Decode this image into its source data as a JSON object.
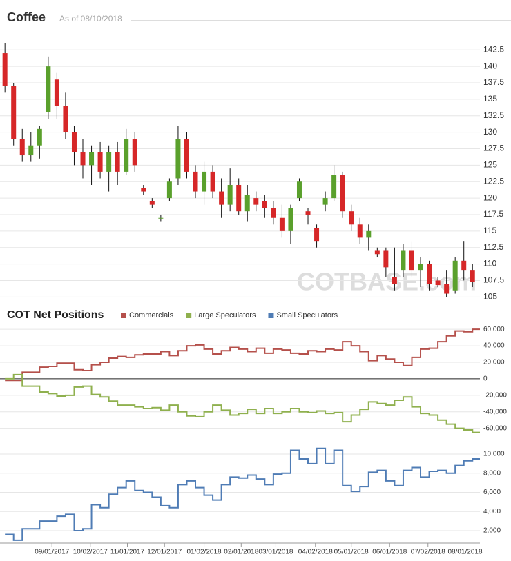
{
  "chart_data": [
    {
      "type": "candlestick",
      "title": "Coffee",
      "subtitle": "As of 08/10/2018",
      "watermark": "COTBASE.com",
      "up_color": "#5aa02c",
      "down_color": "#d62728",
      "xlim": [
        "07/21/2017",
        "08/13/2018"
      ],
      "ylim": [
        104.3,
        144.1
      ],
      "yticks": [
        105,
        107.5,
        110,
        112.5,
        115,
        117.5,
        120,
        122.5,
        125,
        127.5,
        130,
        132.5,
        135,
        137.5,
        140,
        142.5
      ],
      "grid": true,
      "x": [
        "07/25/2017",
        "08/01/2017",
        "08/08/2017",
        "08/15/2017",
        "08/22/2017",
        "08/29/2017",
        "09/05/2017",
        "09/12/2017",
        "09/19/2017",
        "09/26/2017",
        "10/03/2017",
        "10/10/2017",
        "10/17/2017",
        "10/24/2017",
        "10/31/2017",
        "11/07/2017",
        "11/14/2017",
        "11/21/2017",
        "11/28/2017",
        "12/05/2017",
        "12/12/2017",
        "12/19/2017",
        "12/26/2017",
        "01/02/2018",
        "01/09/2018",
        "01/16/2018",
        "01/23/2018",
        "01/30/2018",
        "02/06/2018",
        "02/13/2018",
        "02/20/2018",
        "02/27/2018",
        "03/06/2018",
        "03/13/2018",
        "03/20/2018",
        "03/27/2018",
        "04/03/2018",
        "04/10/2018",
        "04/17/2018",
        "04/24/2018",
        "05/01/2018",
        "05/08/2018",
        "05/15/2018",
        "05/22/2018",
        "05/29/2018",
        "06/05/2018",
        "06/12/2018",
        "06/19/2018",
        "06/26/2018",
        "07/03/2018",
        "07/10/2018",
        "07/17/2018",
        "07/24/2018",
        "07/31/2018",
        "08/07/2018"
      ],
      "open": [
        142,
        137,
        129,
        126.5,
        128,
        133,
        138,
        134,
        130,
        127,
        125,
        127,
        124,
        127,
        124,
        129,
        121.5,
        119.5,
        117,
        120,
        123,
        129,
        124,
        121,
        124,
        121,
        119,
        122,
        118,
        120,
        119.5,
        118.5,
        117,
        115,
        120,
        118,
        115.5,
        119,
        120,
        123.5,
        118,
        116,
        114,
        112,
        112,
        108,
        109,
        112,
        109,
        110,
        107.5,
        107,
        106,
        110.5,
        109
      ],
      "high": [
        143.5,
        137.5,
        130.5,
        130,
        131,
        141.5,
        139,
        136,
        131,
        129,
        128,
        128.5,
        128,
        128.5,
        130.5,
        130,
        122,
        120,
        117.5,
        123,
        131,
        130,
        125,
        125.5,
        125,
        123,
        124.5,
        123,
        122,
        121,
        120.5,
        119.5,
        119,
        119,
        123,
        118.5,
        116,
        121,
        125,
        124,
        119,
        117,
        116,
        112.5,
        112.5,
        112.5,
        113,
        113.5,
        111,
        110.5,
        108,
        109,
        111,
        113.5,
        110
      ],
      "low": [
        136,
        128,
        125.5,
        125.5,
        126,
        132,
        132,
        129,
        125,
        123,
        122,
        123,
        121,
        122,
        123.5,
        124,
        120.5,
        118.5,
        116.5,
        119.5,
        122,
        123,
        120,
        119,
        120,
        117,
        118,
        117.5,
        116.5,
        118,
        117,
        116,
        114,
        113,
        119.5,
        116,
        112.5,
        118,
        119.5,
        117,
        115,
        113,
        112,
        111,
        108,
        106,
        108,
        108,
        106.5,
        106,
        106.5,
        105,
        105.5,
        107.5,
        106.5
      ],
      "close": [
        137,
        129,
        126.5,
        128,
        130.5,
        140,
        134,
        130,
        127,
        125,
        127,
        124,
        127,
        124,
        129,
        125,
        121,
        119,
        117,
        122.5,
        129,
        124,
        121,
        124,
        121,
        119,
        122,
        118,
        120.5,
        119,
        118.5,
        117,
        115,
        118.5,
        122.5,
        117.5,
        113.5,
        120,
        123.5,
        118,
        116,
        114,
        115,
        111.5,
        109.5,
        107,
        112,
        109,
        110,
        107,
        106.8,
        105.5,
        110.5,
        109,
        107.3
      ]
    },
    {
      "type": "step",
      "title": "COT Net Positions",
      "xlim": [
        "07/21/2017",
        "08/13/2018"
      ],
      "xticks": [
        "09/01/2017",
        "10/02/2017",
        "11/01/2017",
        "12/01/2017",
        "01/02/2018",
        "02/01/2018",
        "03/01/2018",
        "04/02/2018",
        "05/01/2018",
        "06/01/2018",
        "07/02/2018",
        "08/01/2018"
      ],
      "ylim": [
        -72000,
        66000
      ],
      "yticks": [
        {
          "value": -60000,
          "label": "-60,000"
        },
        {
          "value": -40000,
          "label": "-40,000"
        },
        {
          "value": -20000,
          "label": "-20,000"
        },
        0,
        {
          "value": 20000,
          "label": "20,000"
        },
        {
          "value": 40000,
          "label": "40,000"
        },
        {
          "value": 60000,
          "label": "60,000"
        }
      ],
      "y2lim": [
        700,
        10940
      ],
      "y2ticks": [
        {
          "value": 2000,
          "label": "2,000"
        },
        {
          "value": 4000,
          "label": "4,000"
        },
        {
          "value": 6000,
          "label": "6,000"
        },
        {
          "value": 8000,
          "label": "8,000"
        },
        {
          "value": 10000,
          "label": "10,000"
        }
      ],
      "grid": true,
      "x": [
        "07/25/2017",
        "08/01/2017",
        "08/08/2017",
        "08/15/2017",
        "08/22/2017",
        "08/29/2017",
        "09/05/2017",
        "09/12/2017",
        "09/19/2017",
        "09/26/2017",
        "10/03/2017",
        "10/10/2017",
        "10/17/2017",
        "10/24/2017",
        "10/31/2017",
        "11/07/2017",
        "11/14/2017",
        "11/21/2017",
        "11/28/2017",
        "12/05/2017",
        "12/12/2017",
        "12/19/2017",
        "12/26/2017",
        "01/02/2018",
        "01/09/2018",
        "01/16/2018",
        "01/23/2018",
        "01/30/2018",
        "02/06/2018",
        "02/13/2018",
        "02/20/2018",
        "02/27/2018",
        "03/06/2018",
        "03/13/2018",
        "03/20/2018",
        "03/27/2018",
        "04/03/2018",
        "04/10/2018",
        "04/17/2018",
        "04/24/2018",
        "05/01/2018",
        "05/08/2018",
        "05/15/2018",
        "05/22/2018",
        "05/29/2018",
        "06/05/2018",
        "06/12/2018",
        "06/19/2018",
        "06/26/2018",
        "07/03/2018",
        "07/10/2018",
        "07/17/2018",
        "07/24/2018",
        "07/31/2018",
        "08/07/2018"
      ],
      "series": [
        {
          "name": "Commercials",
          "color": "#b5504b",
          "values": [
            -2000,
            -2000,
            8000,
            8000,
            14000,
            15000,
            19000,
            19000,
            11000,
            10000,
            17000,
            20000,
            25000,
            27000,
            26000,
            29000,
            30000,
            30000,
            33000,
            28000,
            34000,
            40000,
            41000,
            36000,
            30000,
            34000,
            38000,
            36000,
            33000,
            37000,
            31000,
            36000,
            35000,
            31000,
            30000,
            34000,
            33000,
            36000,
            35000,
            45000,
            40000,
            33000,
            22000,
            28000,
            24000,
            20000,
            16000,
            26000,
            36000,
            37000,
            45000,
            52000,
            58000,
            57000,
            60000
          ]
        },
        {
          "name": "Large Speculators",
          "color": "#8fb04e",
          "values": [
            0,
            5000,
            -9000,
            -9000,
            -16000,
            -18000,
            -21000,
            -20000,
            -10000,
            -9000,
            -19000,
            -22000,
            -27000,
            -32000,
            -32000,
            -34000,
            -36000,
            -35000,
            -38000,
            -32000,
            -40000,
            -45000,
            -46000,
            -40000,
            -32000,
            -38000,
            -44000,
            -42000,
            -37000,
            -42000,
            -36000,
            -42000,
            -40000,
            -36000,
            -40000,
            -41000,
            -39000,
            -42000,
            -41000,
            -52000,
            -44000,
            -37000,
            -28000,
            -30000,
            -32000,
            -26000,
            -22000,
            -34000,
            -42000,
            -44000,
            -50000,
            -55000,
            -60000,
            -62000,
            -65000
          ]
        },
        {
          "name": "Small Speculators",
          "color": "#4f7cb5",
          "axis": "y2",
          "values": [
            1600,
            1000,
            2200,
            2200,
            3000,
            3000,
            3500,
            3700,
            2000,
            2200,
            4700,
            4400,
            5800,
            6500,
            7200,
            6200,
            6000,
            5500,
            4600,
            4400,
            6800,
            7200,
            6500,
            5700,
            5200,
            6800,
            7600,
            7500,
            7800,
            7400,
            6800,
            7900,
            8000,
            10400,
            9500,
            9000,
            10600,
            9000,
            10400,
            6700,
            6100,
            6600,
            8100,
            8300,
            7200,
            6700,
            8300,
            8600,
            7600,
            8200,
            8300,
            8000,
            8800,
            9300,
            9500
          ]
        }
      ]
    }
  ]
}
